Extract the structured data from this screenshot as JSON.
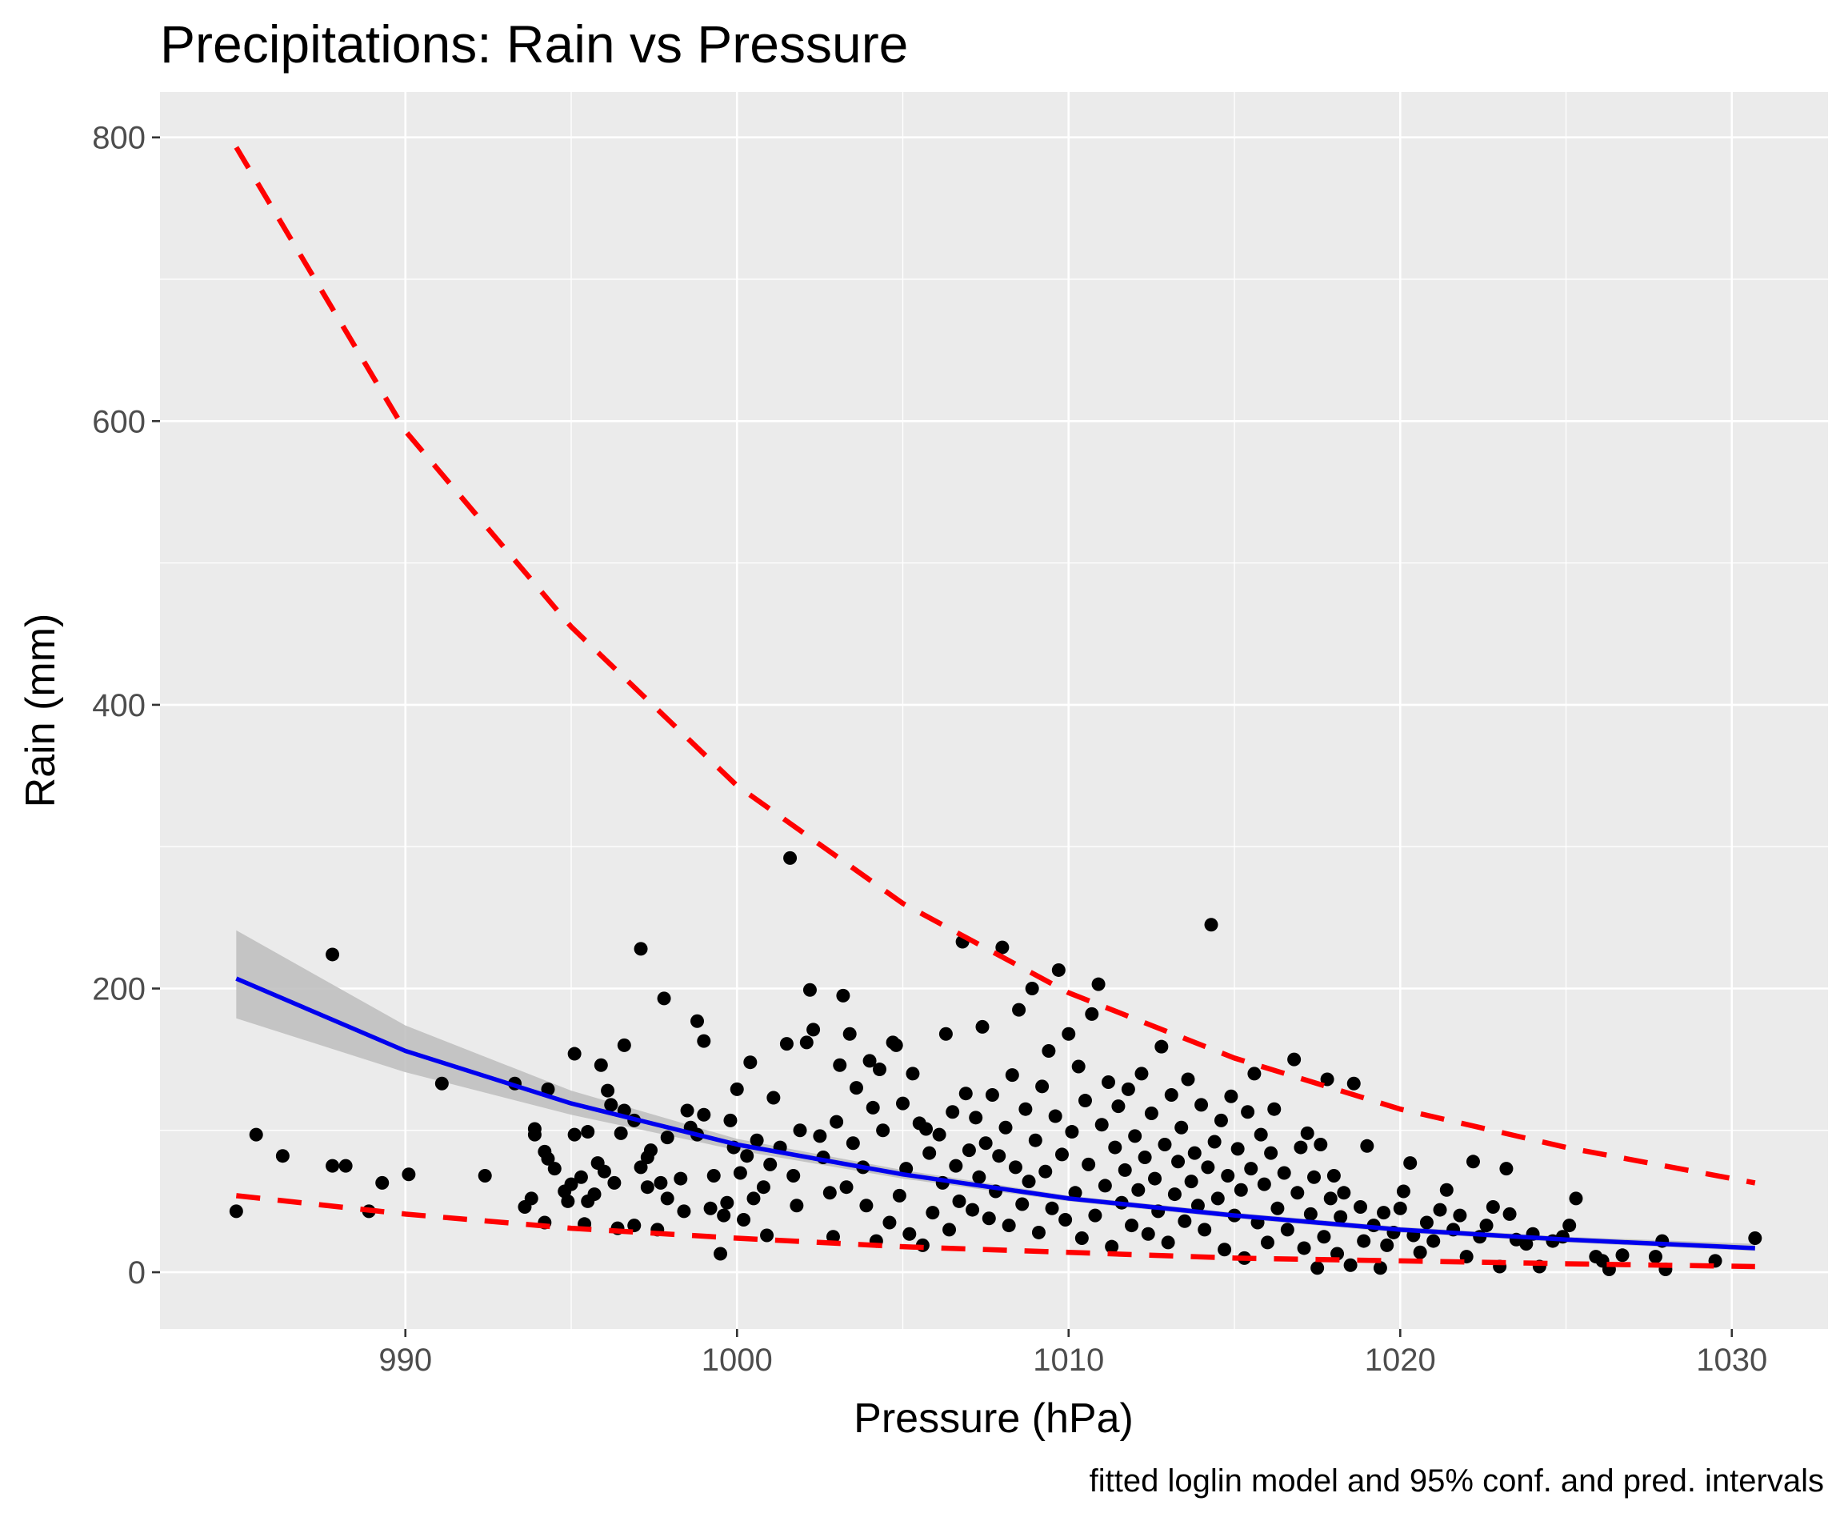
{
  "chart_data": {
    "type": "scatter",
    "title": "Precipitations: Rain vs Pressure",
    "xlabel": "Pressure (hPa)",
    "ylabel": "Rain (mm)",
    "caption": "fitted loglin model and 95% conf. and pred. intervals",
    "xlim": [
      982.6,
      1032.9
    ],
    "ylim": [
      -40,
      832
    ],
    "x_ticks": [
      990,
      1000,
      1010,
      1020,
      1030
    ],
    "y_ticks": [
      0,
      200,
      400,
      600,
      800
    ],
    "grid": true,
    "legend": "none",
    "colors": {
      "panel": "#ebebeb",
      "grid": "#ffffff",
      "points": "#000000",
      "fit": "#0000ee",
      "ribbon": "#bdbdbd",
      "prediction": "#ff0000"
    },
    "series": [
      {
        "kind": "points",
        "points": [
          [
            984.9,
            43
          ],
          [
            985.5,
            97
          ],
          [
            986.3,
            82
          ],
          [
            987.8,
            224
          ],
          [
            987.8,
            75
          ],
          [
            988.2,
            75
          ],
          [
            988.9,
            43
          ],
          [
            989.3,
            63
          ],
          [
            990.1,
            69
          ],
          [
            991.1,
            133
          ],
          [
            992.4,
            68
          ],
          [
            993.3,
            133
          ],
          [
            993.6,
            46
          ],
          [
            993.8,
            52
          ],
          [
            993.9,
            101
          ],
          [
            993.9,
            97
          ],
          [
            994.2,
            35
          ],
          [
            994.3,
            129
          ],
          [
            994.2,
            85
          ],
          [
            994.3,
            80
          ],
          [
            994.5,
            73
          ],
          [
            994.8,
            57
          ],
          [
            994.9,
            50
          ],
          [
            995.0,
            62
          ],
          [
            995.1,
            97
          ],
          [
            995.1,
            154
          ],
          [
            995.3,
            67
          ],
          [
            995.5,
            99
          ],
          [
            995.4,
            34
          ],
          [
            995.5,
            50
          ],
          [
            995.7,
            55
          ],
          [
            995.8,
            77
          ],
          [
            995.9,
            146
          ],
          [
            996.0,
            71
          ],
          [
            996.1,
            128
          ],
          [
            996.2,
            118
          ],
          [
            996.3,
            63
          ],
          [
            996.4,
            31
          ],
          [
            996.5,
            98
          ],
          [
            996.6,
            114
          ],
          [
            996.6,
            160
          ],
          [
            996.9,
            107
          ],
          [
            996.9,
            33
          ],
          [
            997.1,
            228
          ],
          [
            997.1,
            74
          ],
          [
            997.3,
            81
          ],
          [
            997.3,
            60
          ],
          [
            997.4,
            86
          ],
          [
            997.6,
            30
          ],
          [
            997.7,
            63
          ],
          [
            997.8,
            193
          ],
          [
            997.9,
            95
          ],
          [
            997.9,
            52
          ],
          [
            998.3,
            66
          ],
          [
            998.4,
            43
          ],
          [
            998.5,
            114
          ],
          [
            998.6,
            102
          ],
          [
            998.8,
            177
          ],
          [
            998.8,
            97
          ],
          [
            999.0,
            111
          ],
          [
            999.0,
            163
          ],
          [
            999.2,
            45
          ],
          [
            999.3,
            68
          ],
          [
            999.5,
            13
          ],
          [
            999.6,
            40
          ],
          [
            999.7,
            49
          ],
          [
            999.8,
            107
          ],
          [
            999.9,
            88
          ],
          [
            1000.0,
            129
          ],
          [
            1000.1,
            70
          ],
          [
            1000.2,
            37
          ],
          [
            1000.3,
            82
          ],
          [
            1000.4,
            148
          ],
          [
            1000.5,
            52
          ],
          [
            1000.6,
            93
          ],
          [
            1000.8,
            60
          ],
          [
            1000.9,
            26
          ],
          [
            1001.0,
            76
          ],
          [
            1001.1,
            123
          ],
          [
            1001.3,
            88
          ],
          [
            1001.5,
            161
          ],
          [
            1001.6,
            292
          ],
          [
            1001.7,
            68
          ],
          [
            1001.8,
            47
          ],
          [
            1001.9,
            100
          ],
          [
            1002.1,
            162
          ],
          [
            1002.2,
            199
          ],
          [
            1002.3,
            171
          ],
          [
            1002.5,
            96
          ],
          [
            1002.6,
            81
          ],
          [
            1002.8,
            56
          ],
          [
            1002.9,
            25
          ],
          [
            1003.0,
            106
          ],
          [
            1003.1,
            146
          ],
          [
            1003.2,
            195
          ],
          [
            1003.3,
            60
          ],
          [
            1003.4,
            168
          ],
          [
            1003.5,
            91
          ],
          [
            1003.6,
            130
          ],
          [
            1003.8,
            74
          ],
          [
            1003.9,
            47
          ],
          [
            1004.0,
            149
          ],
          [
            1004.1,
            116
          ],
          [
            1004.2,
            22
          ],
          [
            1004.3,
            143
          ],
          [
            1004.4,
            100
          ],
          [
            1004.6,
            35
          ],
          [
            1004.7,
            162
          ],
          [
            1004.8,
            160
          ],
          [
            1004.9,
            54
          ],
          [
            1005.0,
            119
          ],
          [
            1005.1,
            73
          ],
          [
            1005.2,
            27
          ],
          [
            1005.3,
            140
          ],
          [
            1005.5,
            105
          ],
          [
            1005.6,
            19
          ],
          [
            1005.7,
            101
          ],
          [
            1005.8,
            84
          ],
          [
            1005.9,
            42
          ],
          [
            1006.1,
            97
          ],
          [
            1006.2,
            63
          ],
          [
            1006.3,
            168
          ],
          [
            1006.4,
            30
          ],
          [
            1006.5,
            113
          ],
          [
            1006.6,
            75
          ],
          [
            1006.7,
            50
          ],
          [
            1006.8,
            233
          ],
          [
            1006.9,
            126
          ],
          [
            1007.0,
            86
          ],
          [
            1007.1,
            44
          ],
          [
            1007.2,
            109
          ],
          [
            1007.3,
            67
          ],
          [
            1007.4,
            173
          ],
          [
            1007.5,
            91
          ],
          [
            1007.6,
            38
          ],
          [
            1007.7,
            125
          ],
          [
            1007.8,
            57
          ],
          [
            1007.9,
            82
          ],
          [
            1008.0,
            229
          ],
          [
            1008.1,
            102
          ],
          [
            1008.2,
            33
          ],
          [
            1008.3,
            139
          ],
          [
            1008.4,
            74
          ],
          [
            1008.5,
            185
          ],
          [
            1008.6,
            48
          ],
          [
            1008.7,
            115
          ],
          [
            1008.8,
            64
          ],
          [
            1008.9,
            200
          ],
          [
            1009.0,
            93
          ],
          [
            1009.1,
            28
          ],
          [
            1009.2,
            131
          ],
          [
            1009.3,
            71
          ],
          [
            1009.4,
            156
          ],
          [
            1009.5,
            45
          ],
          [
            1009.6,
            110
          ],
          [
            1009.7,
            213
          ],
          [
            1009.8,
            83
          ],
          [
            1009.9,
            37
          ],
          [
            1010.0,
            168
          ],
          [
            1010.1,
            99
          ],
          [
            1010.2,
            56
          ],
          [
            1010.3,
            145
          ],
          [
            1010.4,
            24
          ],
          [
            1010.5,
            121
          ],
          [
            1010.6,
            76
          ],
          [
            1010.7,
            182
          ],
          [
            1010.8,
            40
          ],
          [
            1010.9,
            203
          ],
          [
            1011.0,
            104
          ],
          [
            1011.1,
            61
          ],
          [
            1011.2,
            134
          ],
          [
            1011.3,
            18
          ],
          [
            1011.4,
            88
          ],
          [
            1011.5,
            117
          ],
          [
            1011.6,
            49
          ],
          [
            1011.7,
            72
          ],
          [
            1011.8,
            129
          ],
          [
            1011.9,
            33
          ],
          [
            1012.0,
            96
          ],
          [
            1012.1,
            58
          ],
          [
            1012.2,
            140
          ],
          [
            1012.3,
            81
          ],
          [
            1012.4,
            27
          ],
          [
            1012.5,
            112
          ],
          [
            1012.6,
            66
          ],
          [
            1012.7,
            43
          ],
          [
            1012.8,
            159
          ],
          [
            1012.9,
            90
          ],
          [
            1013.0,
            21
          ],
          [
            1013.1,
            125
          ],
          [
            1013.2,
            55
          ],
          [
            1013.3,
            78
          ],
          [
            1013.4,
            102
          ],
          [
            1013.5,
            36
          ],
          [
            1013.6,
            136
          ],
          [
            1013.7,
            64
          ],
          [
            1013.8,
            84
          ],
          [
            1013.9,
            47
          ],
          [
            1014.0,
            118
          ],
          [
            1014.1,
            30
          ],
          [
            1014.2,
            74
          ],
          [
            1014.3,
            245
          ],
          [
            1014.4,
            92
          ],
          [
            1014.5,
            52
          ],
          [
            1014.6,
            107
          ],
          [
            1014.7,
            16
          ],
          [
            1014.8,
            68
          ],
          [
            1014.9,
            124
          ],
          [
            1015.0,
            40
          ],
          [
            1015.1,
            87
          ],
          [
            1015.2,
            58
          ],
          [
            1015.3,
            10
          ],
          [
            1015.4,
            113
          ],
          [
            1015.5,
            73
          ],
          [
            1015.6,
            140
          ],
          [
            1015.7,
            35
          ],
          [
            1015.8,
            97
          ],
          [
            1015.9,
            62
          ],
          [
            1016.0,
            21
          ],
          [
            1016.1,
            84
          ],
          [
            1016.2,
            115
          ],
          [
            1016.3,
            45
          ],
          [
            1016.5,
            70
          ],
          [
            1016.6,
            30
          ],
          [
            1016.8,
            150
          ],
          [
            1016.9,
            56
          ],
          [
            1017.0,
            88
          ],
          [
            1017.1,
            17
          ],
          [
            1017.2,
            98
          ],
          [
            1017.3,
            41
          ],
          [
            1017.4,
            67
          ],
          [
            1017.5,
            3
          ],
          [
            1017.6,
            90
          ],
          [
            1017.7,
            25
          ],
          [
            1017.8,
            136
          ],
          [
            1017.9,
            52
          ],
          [
            1018.0,
            68
          ],
          [
            1018.1,
            13
          ],
          [
            1018.2,
            39
          ],
          [
            1018.3,
            56
          ],
          [
            1018.5,
            5
          ],
          [
            1018.6,
            133
          ],
          [
            1018.8,
            46
          ],
          [
            1018.9,
            22
          ],
          [
            1019.0,
            89
          ],
          [
            1019.2,
            33
          ],
          [
            1019.4,
            3
          ],
          [
            1019.5,
            42
          ],
          [
            1019.6,
            19
          ],
          [
            1019.8,
            28
          ],
          [
            1020.0,
            45
          ],
          [
            1020.1,
            57
          ],
          [
            1020.3,
            77
          ],
          [
            1020.4,
            26
          ],
          [
            1020.6,
            14
          ],
          [
            1020.8,
            35
          ],
          [
            1021.0,
            22
          ],
          [
            1021.2,
            44
          ],
          [
            1021.4,
            58
          ],
          [
            1021.6,
            30
          ],
          [
            1021.8,
            40
          ],
          [
            1022.0,
            11
          ],
          [
            1022.2,
            78
          ],
          [
            1022.4,
            25
          ],
          [
            1022.6,
            33
          ],
          [
            1022.8,
            46
          ],
          [
            1023.0,
            4
          ],
          [
            1023.2,
            73
          ],
          [
            1023.3,
            41
          ],
          [
            1023.5,
            23
          ],
          [
            1023.8,
            20
          ],
          [
            1024.0,
            27
          ],
          [
            1024.2,
            4
          ],
          [
            1024.6,
            22
          ],
          [
            1024.9,
            25
          ],
          [
            1025.1,
            33
          ],
          [
            1025.3,
            52
          ],
          [
            1025.9,
            11
          ],
          [
            1026.1,
            8
          ],
          [
            1026.3,
            2
          ],
          [
            1026.7,
            12
          ],
          [
            1027.7,
            11
          ],
          [
            1027.9,
            22
          ],
          [
            1028.0,
            2
          ],
          [
            1029.5,
            8
          ],
          [
            1030.7,
            24
          ]
        ]
      },
      {
        "kind": "fit",
        "x": [
          984.9,
          990,
          995,
          1000,
          1005,
          1010,
          1015,
          1020,
          1025,
          1030.7
        ],
        "y": [
          207,
          156,
          119,
          90,
          69,
          52,
          40,
          30,
          23,
          17
        ]
      },
      {
        "kind": "confidence_band",
        "x": [
          984.9,
          990,
          995,
          1000,
          1005,
          1010,
          1015,
          1020,
          1025,
          1030.7
        ],
        "lower": [
          179,
          141,
          111,
          86,
          66,
          50,
          38,
          28,
          21,
          15
        ],
        "upper": [
          241,
          174,
          128,
          94,
          72,
          54,
          42,
          32,
          25,
          20
        ]
      },
      {
        "kind": "prediction_interval",
        "x": [
          984.9,
          990,
          995,
          1000,
          1005,
          1010,
          1015,
          1020,
          1025,
          1030.7
        ],
        "lower": [
          54,
          41,
          31,
          24,
          18,
          14,
          10,
          8,
          6,
          4
        ],
        "upper": [
          793,
          593,
          455,
          343,
          260,
          197,
          151,
          115,
          88,
          63
        ]
      }
    ]
  }
}
